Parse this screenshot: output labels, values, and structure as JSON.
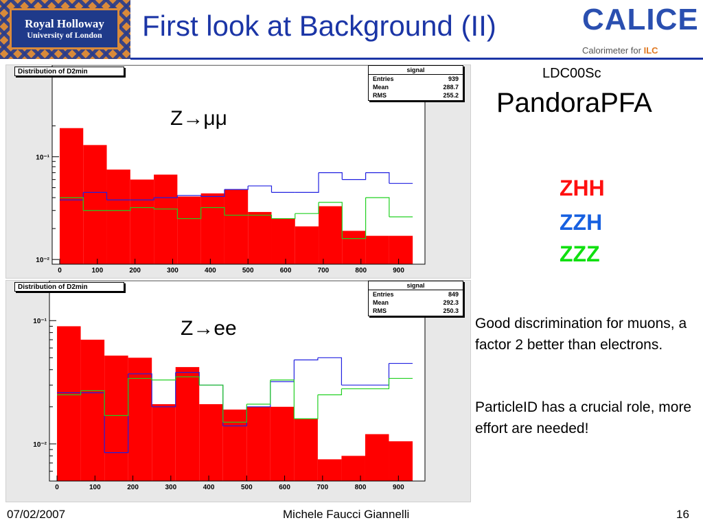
{
  "slide": {
    "title": "First look at Background (II)",
    "logo_left": {
      "line1": "Royal Holloway",
      "line2": "University of London"
    },
    "logo_right": {
      "word": "CALICE",
      "subtitle_pre": "Calorimeter for ",
      "subtitle_ilc": "ILC"
    },
    "detector": "LDC00Sc",
    "algorithm": "PandoraPFA",
    "legend": [
      {
        "label": "ZHH",
        "color": "#ff1010"
      },
      {
        "label": "ZZH",
        "color": "#1760e0"
      },
      {
        "label": "ZZZ",
        "color": "#10e010"
      }
    ],
    "paragraph1": "Good discrimination for muons, a factor 2 better than electrons.",
    "paragraph2": "ParticleID has a crucial role, more effort are needed!",
    "footer": {
      "date": "07/02/2007",
      "author": "Michele Faucci Giannelli",
      "page": "16"
    }
  },
  "chart_data": [
    {
      "type": "bar",
      "title": "Distribution of D2min",
      "annotation": "Z→μμ",
      "y_scale": "log",
      "ylim": [
        0.009,
        0.3
      ],
      "xlim": [
        -20,
        970
      ],
      "x_ticks": [
        0,
        100,
        200,
        300,
        400,
        500,
        600,
        700,
        800,
        900
      ],
      "y_ticks": [
        {
          "value": 0.1,
          "label": "10⁻¹"
        },
        {
          "value": 0.01,
          "label": "10⁻²"
        }
      ],
      "bin_edges": [
        0,
        62.5,
        125,
        187.5,
        250,
        312.5,
        375,
        437.5,
        500,
        562.5,
        625,
        687.5,
        750,
        812.5,
        875,
        937.5
      ],
      "series": [
        {
          "name": "ZHH",
          "style": "filled",
          "color": "#ff0000",
          "values": [
            0.19,
            0.13,
            0.075,
            0.06,
            0.067,
            0.041,
            0.044,
            0.048,
            0.029,
            0.025,
            0.021,
            0.033,
            0.019,
            0.017,
            0.017
          ]
        },
        {
          "name": "ZZH",
          "style": "line",
          "color": "#2020e0",
          "values": [
            0.038,
            0.045,
            0.038,
            0.038,
            0.04,
            0.042,
            0.041,
            0.048,
            0.052,
            0.045,
            0.045,
            0.07,
            0.06,
            0.07,
            0.055
          ]
        },
        {
          "name": "ZZZ",
          "style": "line",
          "color": "#20d020",
          "values": [
            0.04,
            0.03,
            0.03,
            0.032,
            0.031,
            0.025,
            0.032,
            0.027,
            0.027,
            0.025,
            0.028,
            0.036,
            0.016,
            0.04,
            0.026
          ]
        }
      ],
      "stats": {
        "header": "signal",
        "entries_label": "Entries",
        "entries": "939",
        "mean_label": "Mean",
        "mean": "288.7",
        "rms_label": "RMS",
        "rms": "255.2"
      }
    },
    {
      "type": "bar",
      "title": "Distribution of D2min",
      "annotation": "Z→ee",
      "y_scale": "log",
      "ylim": [
        0.005,
        0.12
      ],
      "xlim": [
        -20,
        970
      ],
      "x_ticks": [
        0,
        100,
        200,
        300,
        400,
        500,
        600,
        700,
        800,
        900
      ],
      "y_ticks": [
        {
          "value": 0.1,
          "label": "10⁻¹"
        },
        {
          "value": 0.01,
          "label": "10⁻²"
        }
      ],
      "bin_edges": [
        0,
        62.5,
        125,
        187.5,
        250,
        312.5,
        375,
        437.5,
        500,
        562.5,
        625,
        687.5,
        750,
        812.5,
        875,
        937.5
      ],
      "series": [
        {
          "name": "ZHH",
          "style": "filled",
          "color": "#ff0000",
          "values": [
            0.09,
            0.07,
            0.052,
            0.05,
            0.021,
            0.042,
            0.021,
            0.019,
            0.02,
            0.02,
            0.016,
            0.0075,
            0.008,
            0.012,
            0.0105
          ]
        },
        {
          "name": "ZZH",
          "style": "line",
          "color": "#2020e0",
          "values": [
            0.026,
            0.026,
            0.0085,
            0.037,
            0.02,
            0.038,
            0.03,
            0.014,
            0.02,
            0.032,
            0.048,
            0.05,
            0.03,
            0.03,
            0.045
          ]
        },
        {
          "name": "ZZZ",
          "style": "line",
          "color": "#20d020",
          "values": [
            0.025,
            0.027,
            0.017,
            0.034,
            0.033,
            0.035,
            0.03,
            0.015,
            0.021,
            0.033,
            0.016,
            0.025,
            0.028,
            0.028,
            0.034
          ]
        }
      ],
      "stats": {
        "header": "signal",
        "entries_label": "Entries",
        "entries": "849",
        "mean_label": "Mean",
        "mean": "292.3",
        "rms_label": "RMS",
        "rms": "250.3"
      }
    }
  ]
}
